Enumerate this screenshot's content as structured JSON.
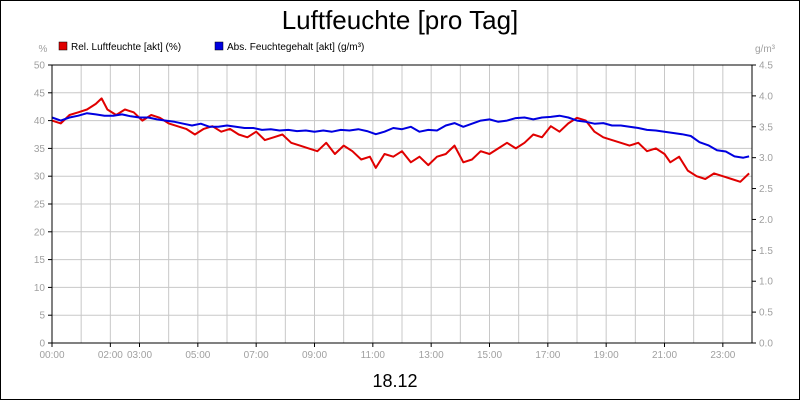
{
  "chart_data": {
    "type": "line",
    "title": "Luftfeuchte [pro Tag]",
    "date_label": "18.12",
    "y_left": {
      "unit": "%",
      "min": 0,
      "max": 50,
      "ticks": [
        "0",
        "5",
        "10",
        "15",
        "20",
        "25",
        "30",
        "35",
        "40",
        "45",
        "50"
      ]
    },
    "y_right": {
      "unit": "g/m³",
      "min": 0,
      "max": 4.5,
      "ticks": [
        "0.0",
        "0.5",
        "1.0",
        "1.5",
        "2.0",
        "2.5",
        "3.0",
        "3.5",
        "4.0",
        "4.5"
      ]
    },
    "x": {
      "min": 0,
      "max": 24,
      "tick_labels": [
        "00:00",
        "02:00",
        "03:00",
        "05:00",
        "07:00",
        "09:00",
        "11:00",
        "13:00",
        "15:00",
        "17:00",
        "19:00",
        "21:00",
        "23:00"
      ],
      "tick_hours": [
        0,
        2,
        3,
        5,
        7,
        9,
        11,
        13,
        15,
        17,
        19,
        21,
        23
      ]
    },
    "grid": true,
    "legend_position": "top-left",
    "series": [
      {
        "name": "Rel. Luftfeuchte [akt] (%)",
        "color": "#e00000",
        "axis": "left",
        "x": [
          0,
          0.3,
          0.6,
          0.9,
          1.2,
          1.5,
          1.7,
          1.9,
          2.2,
          2.5,
          2.8,
          3.1,
          3.4,
          3.7,
          4.0,
          4.3,
          4.6,
          4.9,
          5.2,
          5.5,
          5.8,
          6.1,
          6.4,
          6.7,
          7.0,
          7.3,
          7.6,
          7.9,
          8.2,
          8.5,
          8.8,
          9.1,
          9.4,
          9.7,
          10.0,
          10.3,
          10.6,
          10.9,
          11.1,
          11.4,
          11.7,
          12.0,
          12.3,
          12.6,
          12.9,
          13.2,
          13.5,
          13.8,
          14.1,
          14.4,
          14.7,
          15.0,
          15.3,
          15.6,
          15.9,
          16.2,
          16.5,
          16.8,
          17.1,
          17.4,
          17.7,
          18.0,
          18.3,
          18.6,
          18.9,
          19.2,
          19.5,
          19.8,
          20.1,
          20.4,
          20.7,
          21.0,
          21.2,
          21.5,
          21.8,
          22.1,
          22.4,
          22.7,
          23.0,
          23.3,
          23.6,
          23.9
        ],
        "values": [
          40,
          39.5,
          41,
          41.5,
          42,
          43,
          44,
          42,
          41,
          42,
          41.5,
          40,
          41,
          40.5,
          39.5,
          39,
          38.5,
          37.5,
          38.5,
          39,
          38,
          38.5,
          37.5,
          37,
          38,
          36.5,
          37,
          37.5,
          36,
          35.5,
          35,
          34.5,
          36,
          34,
          35.5,
          34.5,
          33,
          33.5,
          31.5,
          34,
          33.5,
          34.5,
          32.5,
          33.5,
          32,
          33.5,
          34,
          35.5,
          32.5,
          33,
          34.5,
          34,
          35,
          36,
          35,
          36,
          37.5,
          37,
          39,
          38,
          39.5,
          40.5,
          40,
          38,
          37,
          36.5,
          36,
          35.5,
          36,
          34.5,
          35,
          34,
          32.5,
          33.5,
          31,
          30,
          29.5,
          30.5,
          30,
          29.5,
          29,
          30.5
        ]
      },
      {
        "name": "Abs. Feuchtegehalt [akt] (g/m³)",
        "color": "#0000e0",
        "axis": "right",
        "x": [
          0,
          0.3,
          0.6,
          0.9,
          1.2,
          1.5,
          1.8,
          2.1,
          2.4,
          2.7,
          3.0,
          3.3,
          3.6,
          3.9,
          4.2,
          4.5,
          4.8,
          5.1,
          5.4,
          5.7,
          6.0,
          6.3,
          6.6,
          6.9,
          7.2,
          7.5,
          7.8,
          8.1,
          8.4,
          8.7,
          9.0,
          9.3,
          9.6,
          9.9,
          10.2,
          10.5,
          10.8,
          11.1,
          11.4,
          11.7,
          12.0,
          12.3,
          12.6,
          12.9,
          13.2,
          13.5,
          13.8,
          14.1,
          14.4,
          14.7,
          15.0,
          15.3,
          15.6,
          15.9,
          16.2,
          16.5,
          16.8,
          17.1,
          17.4,
          17.7,
          18.0,
          18.3,
          18.6,
          18.9,
          19.2,
          19.5,
          19.8,
          20.1,
          20.4,
          20.7,
          21.0,
          21.3,
          21.6,
          21.9,
          22.2,
          22.5,
          22.8,
          23.1,
          23.4,
          23.7,
          23.9
        ],
        "values": [
          3.65,
          3.6,
          3.65,
          3.68,
          3.72,
          3.7,
          3.68,
          3.68,
          3.7,
          3.67,
          3.65,
          3.65,
          3.62,
          3.6,
          3.58,
          3.55,
          3.52,
          3.55,
          3.5,
          3.5,
          3.52,
          3.5,
          3.48,
          3.48,
          3.45,
          3.46,
          3.44,
          3.45,
          3.43,
          3.44,
          3.42,
          3.44,
          3.42,
          3.45,
          3.44,
          3.46,
          3.43,
          3.38,
          3.42,
          3.48,
          3.46,
          3.5,
          3.42,
          3.45,
          3.44,
          3.52,
          3.56,
          3.5,
          3.55,
          3.6,
          3.62,
          3.58,
          3.6,
          3.64,
          3.65,
          3.62,
          3.65,
          3.66,
          3.68,
          3.65,
          3.6,
          3.58,
          3.55,
          3.56,
          3.52,
          3.52,
          3.5,
          3.48,
          3.45,
          3.44,
          3.42,
          3.4,
          3.38,
          3.35,
          3.25,
          3.2,
          3.12,
          3.1,
          3.02,
          3.0,
          3.02
        ]
      }
    ]
  }
}
